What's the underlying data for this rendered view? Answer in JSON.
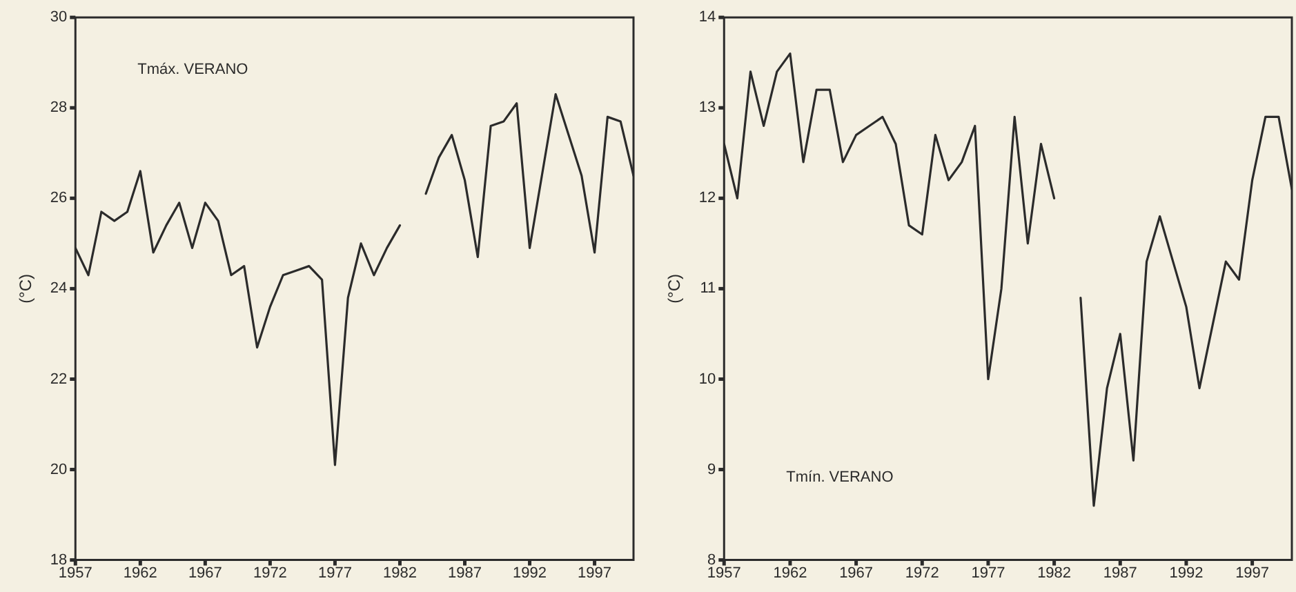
{
  "chart_data": [
    {
      "type": "line",
      "ylabel": "(°C)",
      "annotations": [
        "Tmáx. VERANO"
      ],
      "xlim": [
        1957,
        2000
      ],
      "xticks": [
        1957,
        1962,
        1967,
        1972,
        1977,
        1982,
        1987,
        1992,
        1997
      ],
      "ylim": [
        18,
        30
      ],
      "yticks": [
        18,
        20,
        22,
        24,
        26,
        28,
        30
      ],
      "grid": false,
      "legend": false,
      "marker": "none",
      "line_style": "solid",
      "x": [
        1957,
        1958,
        1959,
        1960,
        1961,
        1962,
        1963,
        1964,
        1965,
        1966,
        1967,
        1968,
        1969,
        1970,
        1971,
        1972,
        1973,
        1974,
        1975,
        1976,
        1977,
        1978,
        1979,
        1980,
        1981,
        1982,
        1983,
        1984,
        1985,
        1986,
        1987,
        1988,
        1989,
        1990,
        1991,
        1992,
        1993,
        1994,
        1995,
        1996,
        1997,
        1998,
        1999,
        2000
      ],
      "series": [
        {
          "color": "#2b2b2b",
          "values": [
            24.9,
            24.3,
            25.7,
            25.5,
            25.7,
            26.6,
            24.8,
            25.4,
            25.9,
            24.9,
            25.9,
            25.5,
            24.3,
            24.5,
            22.7,
            23.6,
            24.3,
            24.4,
            24.5,
            24.2,
            20.1,
            23.8,
            25.0,
            24.3,
            24.9,
            25.4,
            null,
            26.1,
            26.9,
            27.4,
            26.4,
            24.7,
            27.6,
            27.7,
            28.1,
            24.9,
            26.6,
            28.3,
            27.4,
            26.5,
            24.8,
            27.8,
            27.7,
            26.5
          ]
        }
      ]
    },
    {
      "type": "line",
      "ylabel": "(°C)",
      "annotations": [
        "Tmín. VERANO"
      ],
      "xlim": [
        1957,
        2000
      ],
      "xticks": [
        1957,
        1962,
        1967,
        1972,
        1977,
        1982,
        1987,
        1992,
        1997
      ],
      "ylim": [
        8,
        14
      ],
      "yticks": [
        8,
        9,
        10,
        11,
        12,
        13,
        14
      ],
      "grid": false,
      "legend": false,
      "marker": "none",
      "line_style": "solid",
      "x": [
        1957,
        1958,
        1959,
        1960,
        1961,
        1962,
        1963,
        1964,
        1965,
        1966,
        1967,
        1968,
        1969,
        1970,
        1971,
        1972,
        1973,
        1974,
        1975,
        1976,
        1977,
        1978,
        1979,
        1980,
        1981,
        1982,
        1983,
        1984,
        1985,
        1986,
        1987,
        1988,
        1989,
        1990,
        1991,
        1992,
        1993,
        1994,
        1995,
        1996,
        1997,
        1998,
        1999,
        2000
      ],
      "series": [
        {
          "color": "#2b2b2b",
          "values": [
            12.6,
            12.0,
            13.4,
            12.8,
            13.4,
            13.6,
            12.4,
            13.2,
            13.2,
            12.4,
            12.7,
            12.8,
            12.9,
            12.6,
            11.7,
            11.6,
            12.7,
            12.2,
            12.4,
            12.8,
            10.0,
            11.0,
            12.9,
            11.5,
            12.6,
            12.0,
            null,
            10.9,
            8.6,
            9.9,
            10.5,
            9.1,
            11.3,
            11.8,
            11.3,
            10.8,
            9.9,
            10.6,
            11.3,
            11.1,
            12.2,
            12.9,
            12.9,
            12.1
          ]
        }
      ]
    }
  ]
}
